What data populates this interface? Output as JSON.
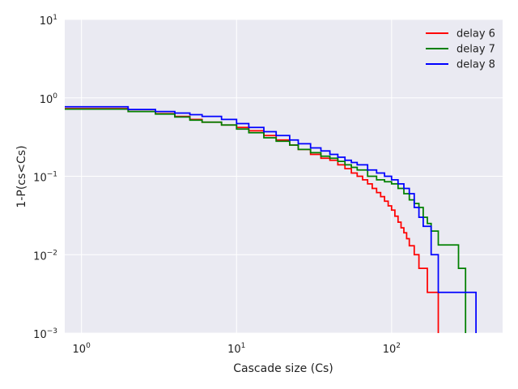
{
  "chart_data": {
    "type": "line",
    "title": "",
    "xlabel": "Cascade size (Cs)",
    "ylabel": "1-P(cs<Cs)",
    "xscale": "log",
    "yscale": "log",
    "xlim": [
      0.78,
      520
    ],
    "ylim": [
      0.001,
      10
    ],
    "x_ticks": [
      {
        "value": 1,
        "base": "10",
        "exp": "0"
      },
      {
        "value": 10,
        "base": "10",
        "exp": "1"
      },
      {
        "value": 100,
        "base": "10",
        "exp": "2"
      }
    ],
    "y_ticks": [
      {
        "value": 0.001,
        "base": "10",
        "exp": "−3"
      },
      {
        "value": 0.01,
        "base": "10",
        "exp": "−2"
      },
      {
        "value": 0.1,
        "base": "10",
        "exp": "−1"
      },
      {
        "value": 1,
        "base": "10",
        "exp": "0"
      },
      {
        "value": 10,
        "base": "10",
        "exp": "1"
      }
    ],
    "grid": true,
    "legend_position": "top-right",
    "step": true,
    "series": [
      {
        "name": "delay 6",
        "color": "#ff0000",
        "x": [
          0.78,
          1,
          2,
          3,
          4,
          5,
          6,
          8,
          10,
          12,
          15,
          18,
          22,
          25,
          30,
          35,
          40,
          45,
          50,
          55,
          60,
          65,
          70,
          75,
          80,
          85,
          90,
          95,
          100,
          105,
          110,
          115,
          120,
          125,
          130,
          140,
          150,
          160,
          170,
          200
        ],
        "y": [
          0.73,
          0.73,
          0.67,
          0.63,
          0.58,
          0.53,
          0.49,
          0.45,
          0.42,
          0.38,
          0.33,
          0.29,
          0.25,
          0.22,
          0.19,
          0.17,
          0.16,
          0.14,
          0.125,
          0.11,
          0.1,
          0.09,
          0.08,
          0.07,
          0.062,
          0.055,
          0.048,
          0.042,
          0.037,
          0.031,
          0.026,
          0.022,
          0.019,
          0.016,
          0.013,
          0.01,
          0.0067,
          0.0067,
          0.0033,
          0.0033
        ]
      },
      {
        "name": "delay 7",
        "color": "#008000",
        "x": [
          0.78,
          1,
          2,
          3,
          4,
          5,
          6,
          8,
          10,
          12,
          15,
          18,
          22,
          25,
          30,
          35,
          40,
          45,
          50,
          55,
          60,
          70,
          80,
          90,
          100,
          110,
          120,
          130,
          140,
          150,
          160,
          170,
          180,
          200,
          220,
          250,
          270,
          300
        ],
        "y": [
          0.72,
          0.72,
          0.67,
          0.62,
          0.57,
          0.52,
          0.49,
          0.45,
          0.4,
          0.36,
          0.31,
          0.28,
          0.25,
          0.22,
          0.2,
          0.18,
          0.17,
          0.155,
          0.14,
          0.13,
          0.12,
          0.1,
          0.09,
          0.085,
          0.08,
          0.07,
          0.06,
          0.05,
          0.045,
          0.04,
          0.03,
          0.025,
          0.02,
          0.0133,
          0.0133,
          0.0133,
          0.0067,
          0.0033
        ]
      },
      {
        "name": "delay 8",
        "color": "#0000ff",
        "x": [
          0.78,
          1,
          2,
          3,
          4,
          5,
          6,
          8,
          10,
          12,
          15,
          18,
          22,
          25,
          30,
          35,
          40,
          45,
          50,
          55,
          60,
          70,
          80,
          90,
          100,
          110,
          120,
          130,
          140,
          150,
          160,
          180,
          200,
          250,
          300,
          350
        ],
        "y": [
          0.77,
          0.77,
          0.71,
          0.67,
          0.64,
          0.61,
          0.58,
          0.53,
          0.47,
          0.42,
          0.37,
          0.33,
          0.29,
          0.26,
          0.23,
          0.21,
          0.19,
          0.175,
          0.16,
          0.15,
          0.14,
          0.12,
          0.11,
          0.1,
          0.09,
          0.08,
          0.07,
          0.06,
          0.04,
          0.03,
          0.023,
          0.01,
          0.0033,
          0.0033,
          0.0033,
          0.0033
        ]
      }
    ]
  }
}
